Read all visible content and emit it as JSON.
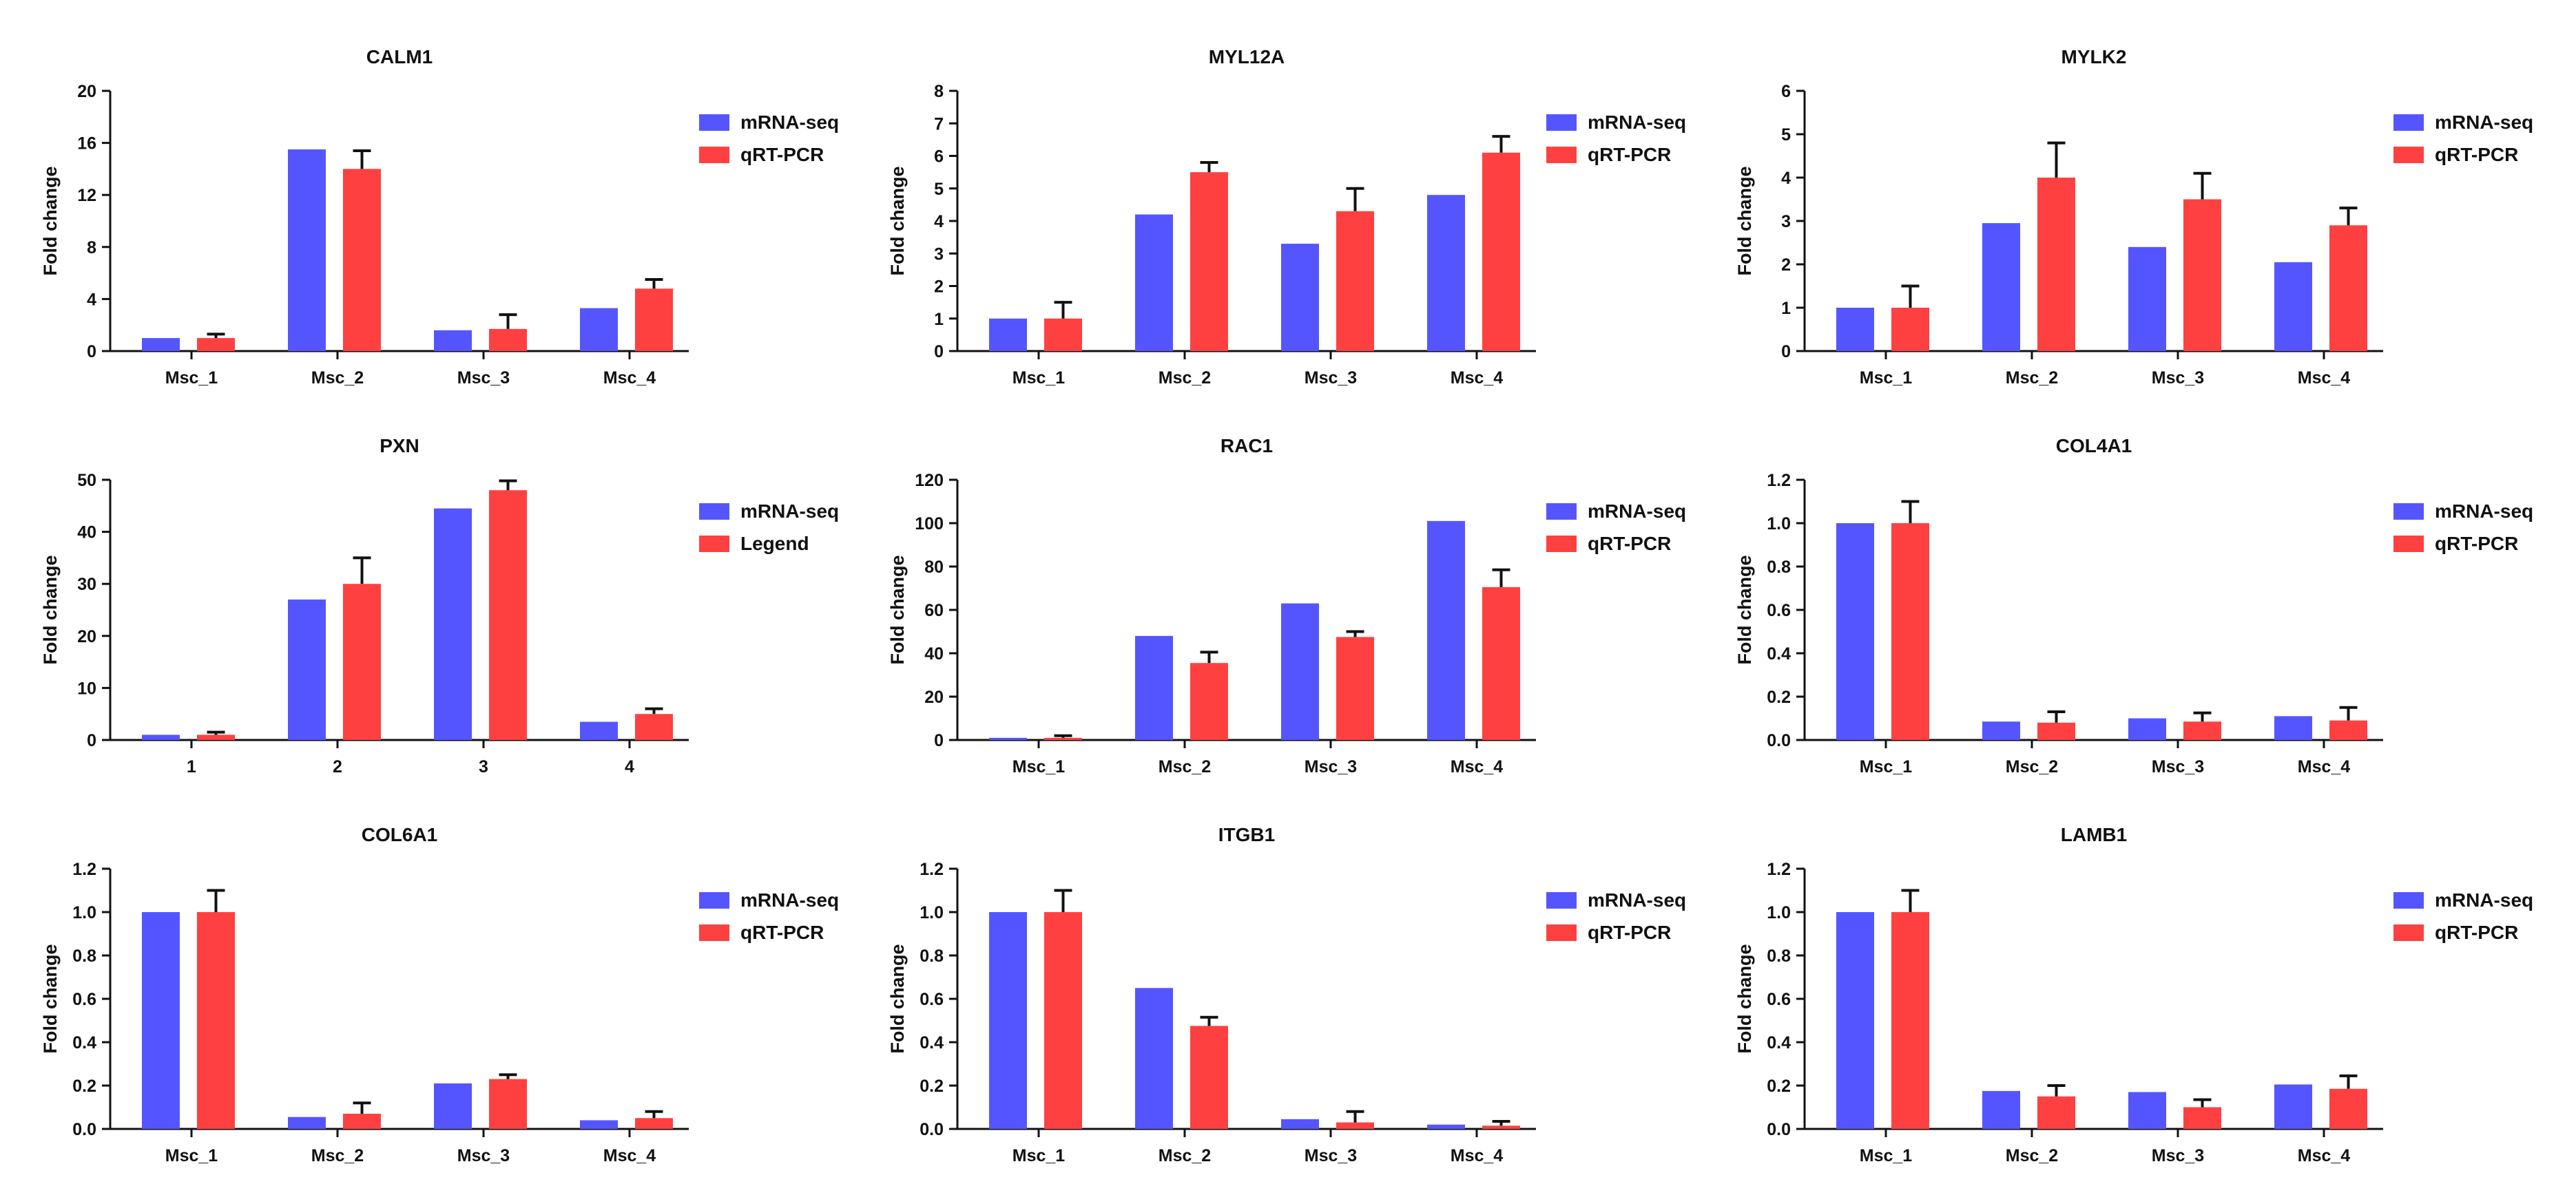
{
  "colors": {
    "mrna": "#5555ff",
    "qrt": "#ff4040",
    "axis": "#111111"
  },
  "chart_data": [
    {
      "type": "bar",
      "title": "CALM1",
      "ylabel": "Fold change",
      "xlabel": "",
      "ylim": [
        0,
        20
      ],
      "yticks": [
        "0",
        "4",
        "8",
        "12",
        "16",
        "20"
      ],
      "categories": [
        "Msc_1",
        "Msc_2",
        "Msc_3",
        "Msc_4"
      ],
      "series": [
        {
          "name": "mRNA-seq",
          "values": [
            1.0,
            15.5,
            1.6,
            3.3
          ],
          "errors": [
            0,
            0,
            0,
            0
          ]
        },
        {
          "name": "qRT-PCR",
          "values": [
            1.0,
            14.0,
            1.7,
            4.8
          ],
          "errors": [
            0.3,
            1.4,
            1.1,
            0.7
          ]
        }
      ],
      "legend": "right"
    },
    {
      "type": "bar",
      "title": "MYL12A",
      "ylabel": "Fold change",
      "xlabel": "",
      "ylim": [
        0,
        8
      ],
      "yticks": [
        "0",
        "1",
        "2",
        "3",
        "4",
        "5",
        "6",
        "7",
        "8"
      ],
      "categories": [
        "Msc_1",
        "Msc_2",
        "Msc_3",
        "Msc_4"
      ],
      "series": [
        {
          "name": "mRNA-seq",
          "values": [
            1.0,
            4.2,
            3.3,
            4.8
          ],
          "errors": [
            0,
            0,
            0,
            0
          ]
        },
        {
          "name": "qRT-PCR",
          "values": [
            1.0,
            5.5,
            4.3,
            6.1
          ],
          "errors": [
            0.5,
            0.3,
            0.7,
            0.5
          ]
        }
      ],
      "legend": "right"
    },
    {
      "type": "bar",
      "title": "MYLK2",
      "ylabel": "Fold change",
      "xlabel": "",
      "ylim": [
        0,
        6
      ],
      "yticks": [
        "0",
        "1",
        "2",
        "3",
        "4",
        "5",
        "6"
      ],
      "categories": [
        "Msc_1",
        "Msc_2",
        "Msc_3",
        "Msc_4"
      ],
      "series": [
        {
          "name": "mRNA-seq",
          "values": [
            1.0,
            2.95,
            2.4,
            2.05
          ],
          "errors": [
            0,
            0,
            0,
            0
          ]
        },
        {
          "name": "qRT-PCR",
          "values": [
            1.0,
            4.0,
            3.5,
            2.9
          ],
          "errors": [
            0.5,
            0.8,
            0.6,
            0.4
          ]
        }
      ],
      "legend": "right"
    },
    {
      "type": "bar",
      "title": "PXN",
      "ylabel": "Fold change",
      "xlabel": "",
      "ylim": [
        0,
        50
      ],
      "yticks": [
        "0",
        "10",
        "20",
        "30",
        "40",
        "50"
      ],
      "categories": [
        "1",
        "2",
        "3",
        "4"
      ],
      "series": [
        {
          "name": "mRNA-seq",
          "values": [
            1.0,
            27.0,
            44.5,
            3.5
          ],
          "errors": [
            0,
            0,
            0,
            0
          ]
        },
        {
          "name": "Legend",
          "values": [
            1.0,
            30.0,
            48.0,
            5.0
          ],
          "errors": [
            0.5,
            5.0,
            1.8,
            1.0
          ]
        }
      ],
      "legend": "right"
    },
    {
      "type": "bar",
      "title": "RAC1",
      "ylabel": "Fold change",
      "xlabel": "",
      "ylim": [
        0,
        120
      ],
      "yticks": [
        "0",
        "20",
        "40",
        "60",
        "80",
        "100",
        "120"
      ],
      "categories": [
        "Msc_1",
        "Msc_2",
        "Msc_3",
        "Msc_4"
      ],
      "series": [
        {
          "name": "mRNA-seq",
          "values": [
            1.0,
            48.0,
            63.0,
            101.0
          ],
          "errors": [
            0,
            0,
            0,
            0
          ]
        },
        {
          "name": "qRT-PCR",
          "values": [
            1.0,
            35.5,
            47.5,
            70.5
          ],
          "errors": [
            1.0,
            5.0,
            2.5,
            8.0
          ]
        }
      ],
      "legend": "right"
    },
    {
      "type": "bar",
      "title": "COL4A1",
      "ylabel": "Fold change",
      "xlabel": "",
      "ylim": [
        0,
        1.2
      ],
      "yticks": [
        "0.0",
        "0.2",
        "0.4",
        "0.6",
        "0.8",
        "1.0",
        "1.2"
      ],
      "categories": [
        "Msc_1",
        "Msc_2",
        "Msc_3",
        "Msc_4"
      ],
      "series": [
        {
          "name": "mRNA-seq",
          "values": [
            1.0,
            0.085,
            0.1,
            0.11
          ],
          "errors": [
            0,
            0,
            0,
            0
          ]
        },
        {
          "name": "qRT-PCR",
          "values": [
            1.0,
            0.08,
            0.085,
            0.09
          ],
          "errors": [
            0.1,
            0.05,
            0.04,
            0.06
          ]
        }
      ],
      "legend": "right"
    },
    {
      "type": "bar",
      "title": "COL6A1",
      "ylabel": "Fold change",
      "xlabel": "",
      "ylim": [
        0,
        1.2
      ],
      "yticks": [
        "0.0",
        "0.2",
        "0.4",
        "0.6",
        "0.8",
        "1.0",
        "1.2"
      ],
      "categories": [
        "Msc_1",
        "Msc_2",
        "Msc_3",
        "Msc_4"
      ],
      "series": [
        {
          "name": "mRNA-seq",
          "values": [
            1.0,
            0.055,
            0.21,
            0.04
          ],
          "errors": [
            0,
            0,
            0,
            0
          ]
        },
        {
          "name": "qRT-PCR",
          "values": [
            1.0,
            0.07,
            0.23,
            0.05
          ],
          "errors": [
            0.1,
            0.05,
            0.02,
            0.03
          ]
        }
      ],
      "legend": "right"
    },
    {
      "type": "bar",
      "title": "ITGB1",
      "ylabel": "Fold change",
      "xlabel": "",
      "ylim": [
        0,
        1.2
      ],
      "yticks": [
        "0.0",
        "0.2",
        "0.4",
        "0.6",
        "0.8",
        "1.0",
        "1.2"
      ],
      "categories": [
        "Msc_1",
        "Msc_2",
        "Msc_3",
        "Msc_4"
      ],
      "series": [
        {
          "name": "mRNA-seq",
          "values": [
            1.0,
            0.65,
            0.045,
            0.02
          ],
          "errors": [
            0,
            0,
            0,
            0
          ]
        },
        {
          "name": "qRT-PCR",
          "values": [
            1.0,
            0.475,
            0.03,
            0.015
          ],
          "errors": [
            0.1,
            0.04,
            0.05,
            0.02
          ]
        }
      ],
      "legend": "right"
    },
    {
      "type": "bar",
      "title": "LAMB1",
      "ylabel": "Fold change",
      "xlabel": "",
      "ylim": [
        0,
        1.2
      ],
      "yticks": [
        "0.0",
        "0.2",
        "0.4",
        "0.6",
        "0.8",
        "1.0",
        "1.2"
      ],
      "categories": [
        "Msc_1",
        "Msc_2",
        "Msc_3",
        "Msc_4"
      ],
      "series": [
        {
          "name": "mRNA-seq",
          "values": [
            1.0,
            0.175,
            0.17,
            0.205
          ],
          "errors": [
            0,
            0,
            0,
            0
          ]
        },
        {
          "name": "qRT-PCR",
          "values": [
            1.0,
            0.15,
            0.1,
            0.185
          ],
          "errors": [
            0.1,
            0.05,
            0.035,
            0.06
          ]
        }
      ],
      "legend": "right"
    }
  ]
}
